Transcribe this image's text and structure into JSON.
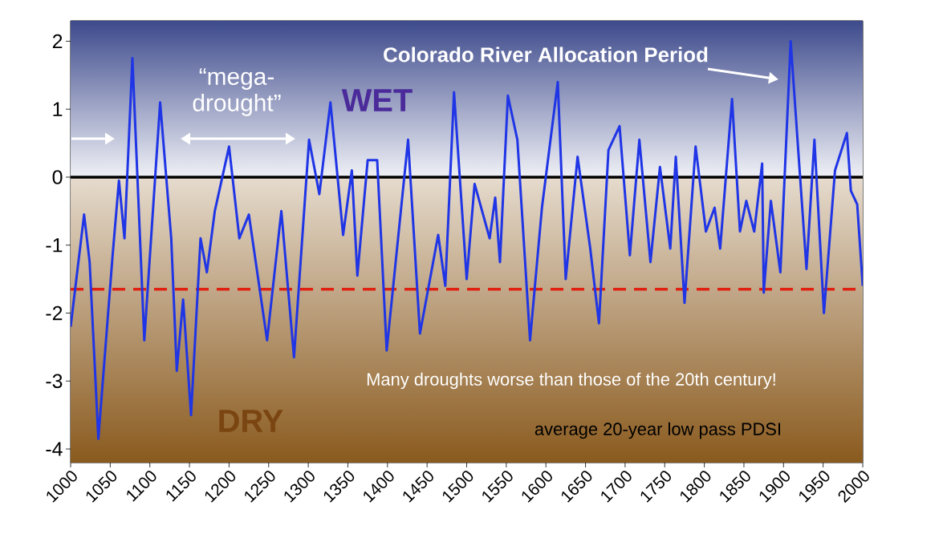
{
  "chart_data": {
    "type": "line",
    "x": [
      1000,
      1017,
      1024,
      1035,
      1053,
      1061,
      1068,
      1078,
      1093,
      1113,
      1127,
      1134,
      1142,
      1152,
      1164,
      1172,
      1182,
      1200,
      1213,
      1225,
      1248,
      1266,
      1282,
      1301,
      1314,
      1328,
      1344,
      1355,
      1362,
      1375,
      1387,
      1399,
      1426,
      1441,
      1464,
      1473,
      1484,
      1500,
      1510,
      1529,
      1536,
      1542,
      1552,
      1564,
      1580,
      1595,
      1615,
      1625,
      1640,
      1656,
      1667,
      1679,
      1693,
      1706,
      1718,
      1732,
      1744,
      1757,
      1764,
      1775,
      1789,
      1802,
      1813,
      1820,
      1835,
      1845,
      1853,
      1863,
      1873,
      1875,
      1884,
      1896,
      1909,
      1929,
      1939,
      1951,
      1965,
      1980,
      1985,
      1993,
      2000
    ],
    "series": [
      {
        "color": "#1f35e6",
        "values": [
          -2.2,
          -0.55,
          -1.25,
          -3.85,
          -1.15,
          -0.05,
          -0.9,
          1.75,
          -2.4,
          1.1,
          -0.9,
          -2.85,
          -1.8,
          -3.5,
          -0.9,
          -1.4,
          -0.5,
          0.45,
          -0.9,
          -0.55,
          -2.4,
          -0.5,
          -2.65,
          0.55,
          -0.25,
          1.1,
          -0.85,
          0.1,
          -1.45,
          0.25,
          0.25,
          -2.55,
          0.55,
          -2.3,
          -0.85,
          -1.6,
          1.25,
          -1.5,
          -0.1,
          -0.9,
          -0.3,
          -1.25,
          1.2,
          0.55,
          -2.4,
          -0.45,
          1.4,
          -1.5,
          0.3,
          -1.05,
          -2.15,
          0.4,
          0.75,
          -1.15,
          0.55,
          -1.25,
          0.15,
          -1.05,
          0.3,
          -1.85,
          0.45,
          -0.8,
          -0.45,
          -1.05,
          1.15,
          -0.8,
          -0.35,
          -0.8,
          0.2,
          -1.7,
          -0.35,
          -1.4,
          2.0,
          -1.35,
          0.55,
          -2.0,
          0.1,
          0.65,
          -0.2,
          -0.4,
          -1.6
        ]
      }
    ],
    "xlim": [
      1000,
      2000
    ],
    "ylim": [
      -4.2,
      2.3
    ],
    "xticks": [
      1000,
      1050,
      1100,
      1150,
      1200,
      1250,
      1300,
      1350,
      1400,
      1450,
      1500,
      1550,
      1600,
      1650,
      1700,
      1750,
      1800,
      1850,
      1900,
      1950,
      2000
    ],
    "yticks": [
      -4,
      -3,
      -2,
      -1,
      0,
      1,
      2
    ],
    "bands": [
      {
        "axis": "y",
        "from": 0,
        "to": 2.3,
        "color": "#3d4a8c"
      },
      {
        "axis": "y",
        "from": -4.2,
        "to": 0,
        "color": "#8a5a1e"
      }
    ],
    "ref_lines": [
      {
        "axis": "y",
        "value": 0,
        "color": "#000000",
        "line_style": "solid"
      },
      {
        "axis": "y",
        "value": -1.65,
        "color": "#e02010",
        "line_style": "dashed"
      }
    ],
    "annotations": [
      "“mega-drought”",
      "WET",
      "DRY",
      "Colorado River Allocation Period",
      "Many droughts worse than those of the 20th century!",
      "average 20-year low pass PDSI"
    ]
  }
}
